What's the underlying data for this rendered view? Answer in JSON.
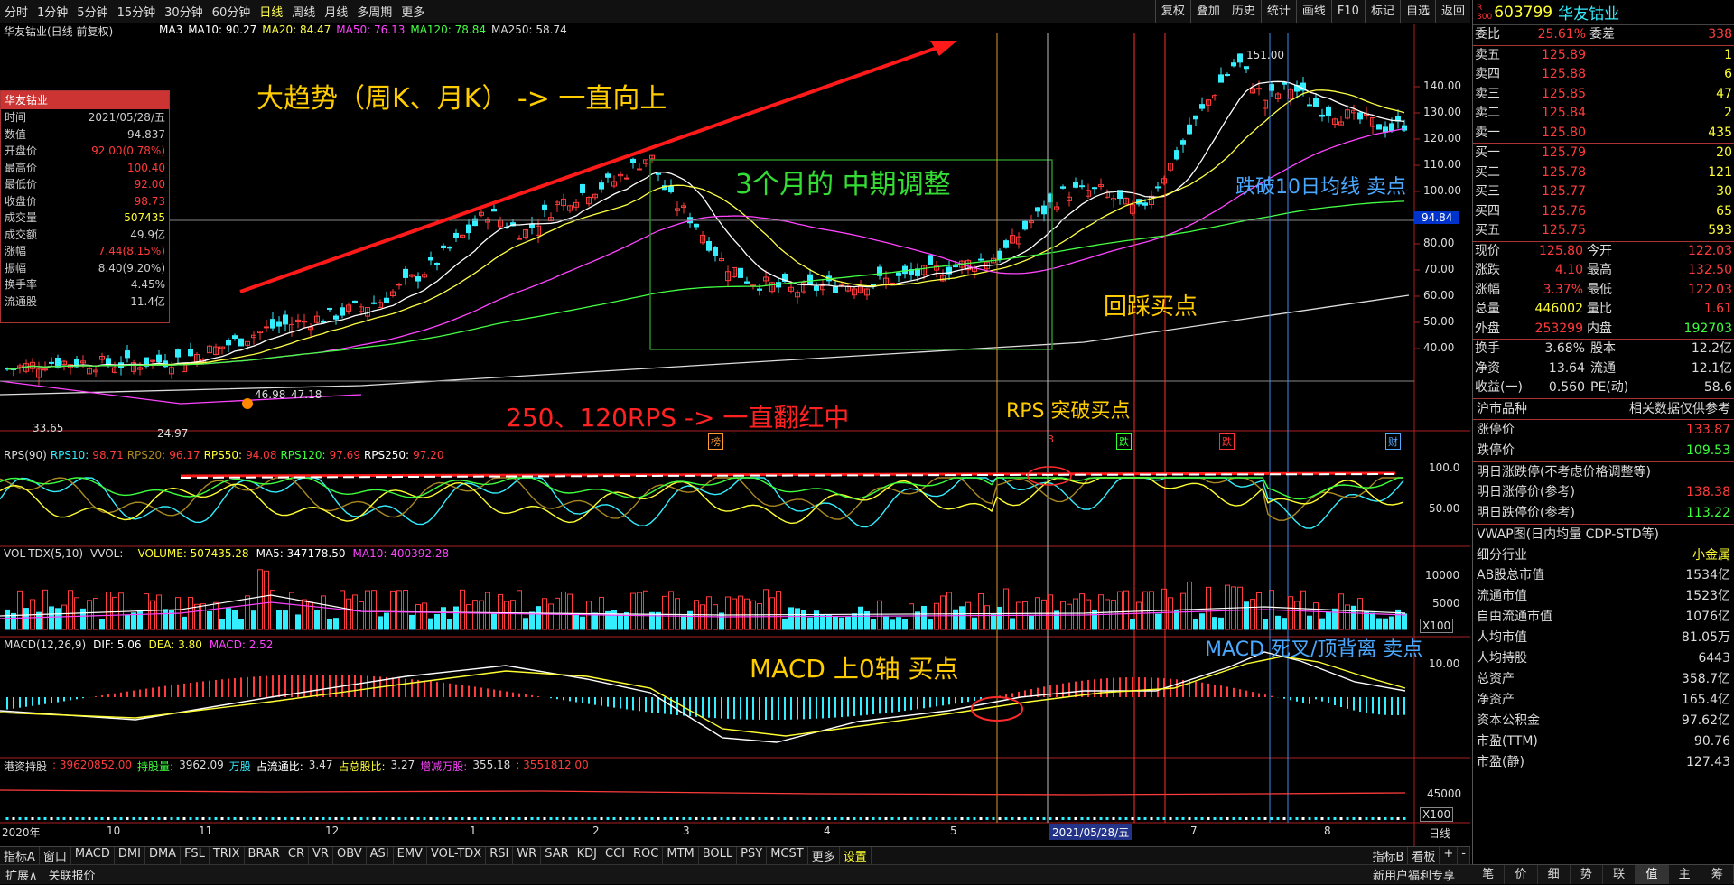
{
  "topbar": {
    "periods": [
      "分时",
      "1分钟",
      "5分钟",
      "15分钟",
      "30分钟",
      "60分钟",
      "日线",
      "周线",
      "月线",
      "多周期",
      "更多"
    ],
    "active": "日线",
    "tools": [
      "复权",
      "叠加",
      "历史",
      "统计",
      "画线",
      "F10",
      "标记",
      "自选",
      "返回"
    ]
  },
  "chart": {
    "title": "华友钴业(日线 前复权)",
    "ma_labels": [
      {
        "text": "MA3",
        "color": "#ffffff"
      },
      {
        "text": "MA10: 90.27",
        "color": "#ffffff"
      },
      {
        "text": "MA20: 84.47",
        "color": "#ffff44"
      },
      {
        "text": "MA50: 76.13",
        "color": "#ff44ff"
      },
      {
        "text": "MA120: 78.84",
        "color": "#44ff44"
      },
      {
        "text": "MA250: 58.74",
        "color": "#dddddd"
      }
    ],
    "price_axis": [
      "140.00",
      "130.00",
      "120.00",
      "110.00",
      "100.00",
      "90.00",
      "80.00",
      "70.00",
      "60.00",
      "50.00",
      "40.00"
    ],
    "current_price_tag": "94.84",
    "high_mark": "151.00",
    "low_mark": "33.65",
    "mid_marks": [
      "46.98",
      "47.18"
    ],
    "small_low": "24.97",
    "event_tags": [
      "榜",
      "3",
      "跌",
      "跌",
      "财"
    ],
    "rps": {
      "label": "RPS(90)",
      "items": [
        {
          "k": "RPS10:",
          "v": "98.71",
          "kc": "#3ef",
          "vc": "#ff3b3b"
        },
        {
          "k": "RPS20:",
          "v": "96.17",
          "kc": "#aa8822",
          "vc": "#ff3b3b"
        },
        {
          "k": "RPS50:",
          "v": "94.08",
          "kc": "#ffff33",
          "vc": "#ff3b3b"
        },
        {
          "k": "RPS120:",
          "v": "97.69",
          "kc": "#3dff3d",
          "vc": "#ff3b3b"
        },
        {
          "k": "RPS250:",
          "v": "97.20",
          "kc": "#ffffff",
          "vc": "#ff3b3b"
        }
      ],
      "axis": [
        "100.0",
        "50.00"
      ]
    },
    "vol": {
      "label": "VOL-TDX(5,10)",
      "vvol": "VVOL: -",
      "volume": "VOLUME: 507435.28",
      "ma5": "MA5: 347178.50",
      "ma10": "MA10: 400392.28",
      "axis": [
        "10000",
        "5000",
        "X100"
      ]
    },
    "macd": {
      "label": "MACD(12,26,9)",
      "dif": "DIF: 5.06",
      "dea": "DEA: 3.80",
      "macd": "MACD: 2.52",
      "axis": [
        "10.00"
      ]
    },
    "hk": {
      "label": "港资持股",
      "v1": ": 39620852.00",
      "k2": "持股量:",
      "v2": "3962.09",
      "u2": "万股",
      "k3": "占流通比:",
      "v3": "3.47",
      "k4": "占总股比:",
      "v4": "3.27",
      "k5": "增减万股:",
      "v5": "355.18",
      "v6": ": 3551812.00",
      "axis": [
        "45000",
        "X100"
      ]
    },
    "date_axis": [
      "2020年",
      "10",
      "11",
      "12",
      "1",
      "2",
      "3",
      "4",
      "5",
      "2021/05/28/五",
      "7",
      "8"
    ],
    "date_axis_right": "日线",
    "annotations": {
      "trend": "大趋势（周K、月K） ->  一直向上",
      "mid": "3个月的 中期调整",
      "break10": "跌破10日均线 卖点",
      "pullback": "回踩买点",
      "rps_text": "250、120RPS -> 一直翻红中",
      "rps_break": "RPS 突破买点",
      "macd_zero": "MACD 上0轴 买点",
      "macd_dead": "MACD 死叉/顶背离 卖点"
    }
  },
  "infobox": {
    "title": "华友钴业",
    "rows": [
      {
        "k": "时间",
        "v": "2021/05/28/五",
        "c": ""
      },
      {
        "k": "数值",
        "v": "94.837",
        "c": ""
      },
      {
        "k": "开盘价",
        "v": "92.00(0.78%)",
        "c": "red"
      },
      {
        "k": "最高价",
        "v": "100.40",
        "c": "red"
      },
      {
        "k": "最低价",
        "v": "92.00",
        "c": "red"
      },
      {
        "k": "收盘价",
        "v": "98.73",
        "c": "red"
      },
      {
        "k": "成交量",
        "v": "507435",
        "c": "yellow"
      },
      {
        "k": "成交额",
        "v": "49.9亿",
        "c": ""
      },
      {
        "k": "涨幅",
        "v": "7.44(8.15%)",
        "c": "red"
      },
      {
        "k": "振幅",
        "v": "8.40(9.20%)",
        "c": ""
      },
      {
        "k": "换手率",
        "v": "4.45%",
        "c": ""
      },
      {
        "k": "流通股",
        "v": "11.4亿",
        "c": ""
      }
    ]
  },
  "bottombar": {
    "tabs": [
      "指标A",
      "窗口",
      "MACD",
      "DMI",
      "DMA",
      "FSL",
      "TRIX",
      "BRAR",
      "CR",
      "VR",
      "OBV",
      "ASI",
      "EMV",
      "VOL-TDX",
      "RSI",
      "WR",
      "SAR",
      "KDJ",
      "CCI",
      "ROC",
      "MTM",
      "BOLL",
      "PSY",
      "MCST",
      "更多",
      "设置"
    ],
    "right": [
      "指标B",
      "看板",
      "+",
      "-"
    ]
  },
  "statusbar": {
    "left": [
      "扩展∧",
      "关联报价"
    ],
    "right_text": "新用户福利专享",
    "tabs": [
      "笔",
      "价",
      "细",
      "势",
      "联",
      "值",
      "主",
      "筹"
    ]
  },
  "quote": {
    "code": "603799",
    "name": "华友钴业",
    "webi": {
      "k": "委比",
      "v": "25.61%",
      "k2": "委差",
      "v2": "338"
    },
    "asks": [
      {
        "k": "卖五",
        "p": "125.89",
        "q": "1"
      },
      {
        "k": "卖四",
        "p": "125.88",
        "q": "6"
      },
      {
        "k": "卖三",
        "p": "125.85",
        "q": "47"
      },
      {
        "k": "卖二",
        "p": "125.84",
        "q": "2"
      },
      {
        "k": "卖一",
        "p": "125.80",
        "q": "435"
      }
    ],
    "bids": [
      {
        "k": "买一",
        "p": "125.79",
        "q": "20"
      },
      {
        "k": "买二",
        "p": "125.78",
        "q": "121"
      },
      {
        "k": "买三",
        "p": "125.77",
        "q": "30"
      },
      {
        "k": "买四",
        "p": "125.76",
        "q": "65"
      },
      {
        "k": "买五",
        "p": "125.75",
        "q": "593"
      }
    ],
    "stats": [
      {
        "k": "现价",
        "v": "125.80",
        "vc": "red",
        "k2": "今开",
        "v2": "122.03",
        "v2c": "red"
      },
      {
        "k": "涨跌",
        "v": "4.10",
        "vc": "red",
        "k2": "最高",
        "v2": "132.50",
        "v2c": "red"
      },
      {
        "k": "涨幅",
        "v": "3.37%",
        "vc": "red",
        "k2": "最低",
        "v2": "122.03",
        "v2c": "red"
      },
      {
        "k": "总量",
        "v": "446002",
        "vc": "yellow",
        "k2": "量比",
        "v2": "1.61",
        "v2c": "red"
      },
      {
        "k": "外盘",
        "v": "253299",
        "vc": "red",
        "k2": "内盘",
        "v2": "192703",
        "v2c": "green"
      }
    ],
    "stats2": [
      {
        "k": "换手",
        "v": "3.68%",
        "k2": "股本",
        "v2": "12.2亿"
      },
      {
        "k": "净资",
        "v": "13.64",
        "k2": "流通",
        "v2": "12.1亿"
      },
      {
        "k": "收益(一)",
        "v": "0.560",
        "k2": "PE(动)",
        "v2": "58.6"
      }
    ],
    "market_tab": "沪市品种",
    "market_note": "相关数据仅供参考",
    "limit": [
      {
        "k": "涨停价",
        "v": "133.87",
        "c": "red"
      },
      {
        "k": "跌停价",
        "v": "109.53",
        "c": "green"
      }
    ],
    "next_title": "明日涨跌停(不考虑价格调整等)",
    "next": [
      {
        "k": "明日涨停价(参考)",
        "v": "138.38",
        "c": "red"
      },
      {
        "k": "明日跌停价(参考)",
        "v": "113.22",
        "c": "green"
      }
    ],
    "vwap": "VWAP图(日内均量 CDP-STD等)",
    "industry": {
      "k": "细分行业",
      "v": "小金属"
    },
    "fin": [
      {
        "k": "AB股总市值",
        "v": "1534亿"
      },
      {
        "k": "流通市值",
        "v": "1523亿"
      },
      {
        "k": "自由流通市值",
        "v": "1076亿"
      },
      {
        "k": "人均市值",
        "v": "81.05万"
      },
      {
        "k": "人均持股",
        "v": "6443"
      },
      {
        "k": "总资产",
        "v": "358.7亿"
      },
      {
        "k": "净资产",
        "v": "165.4亿"
      },
      {
        "k": "资本公积金",
        "v": "97.62亿"
      },
      {
        "k": "市盈(TTM)",
        "v": "90.76"
      },
      {
        "k": "市盈(静)",
        "v": "127.43"
      }
    ]
  },
  "colors": {
    "up": "#ff3b3b",
    "down": "#3ef",
    "ma10": "#ffffff",
    "ma20": "#ffff44",
    "ma50": "#ff44ff",
    "ma120": "#44ff44",
    "ma250": "#dddddd"
  }
}
